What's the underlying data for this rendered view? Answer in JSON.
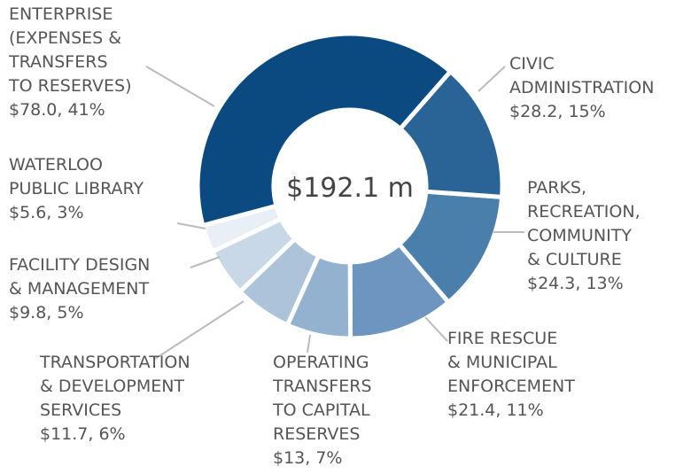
{
  "chart_data": {
    "type": "donut",
    "center_label": "$192.1 m",
    "categories": [
      "ENTERPRISE\n(EXPENSES &\nTRANSFERS\nTO RESERVES)",
      "CIVIC\nADMINISTRATION",
      "PARKS,\nRECREATION,\nCOMMUNITY\n& CULTURE",
      "FIRE RESCUE\n& MUNICIPAL\nENFORCEMENT",
      "OPERATING\nTRANSFERS\nTO CAPITAL\nRESERVES",
      "TRANSPORTATION\n& DEVELOPMENT\nSERVICES",
      "FACILITY DESIGN\n& MANAGEMENT",
      "WATERLOO\nPUBLIC LIBRARY"
    ],
    "values": [
      78.0,
      28.2,
      24.3,
      21.4,
      13,
      11.7,
      9.8,
      5.6
    ],
    "value_labels": [
      "$78.0, 41%",
      "$28.2, 15%",
      "$24.3, 13%",
      "$21.4, 11%",
      "$13, 7%",
      "$11.7, 6%",
      "$9.8, 5%",
      "$5.6, 3%"
    ],
    "colors": [
      "#0b4a80",
      "#2a6496",
      "#4a7fab",
      "#6d95bf",
      "#93b2cf",
      "#adc3da",
      "#c9d8e7",
      "#e8eff6"
    ]
  }
}
